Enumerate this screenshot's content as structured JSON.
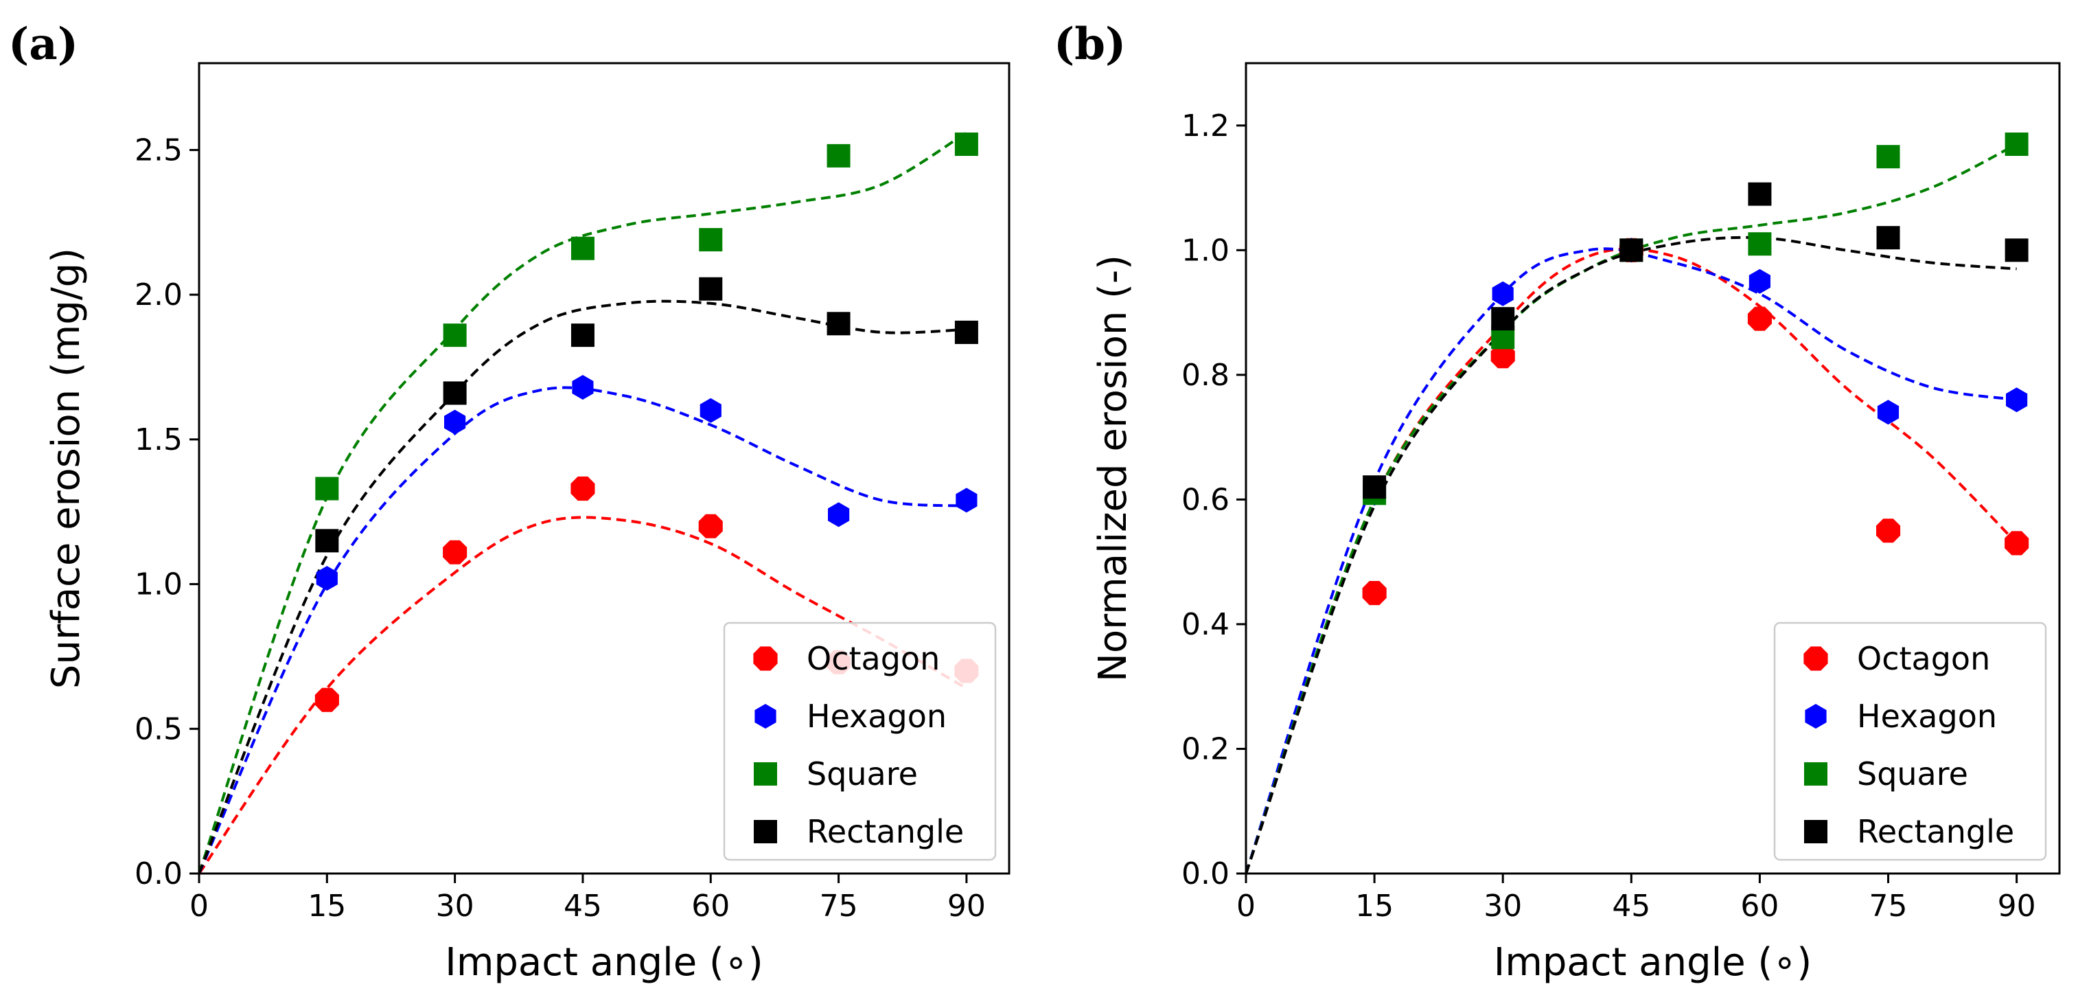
{
  "chart_data": [
    {
      "type": "scatter",
      "panel_label": "(a)",
      "xlabel": "Impact angle (∘)",
      "ylabel": "Surface erosion (mg/g)",
      "xlim": [
        0,
        95
      ],
      "ylim": [
        0,
        2.8
      ],
      "xticks": [
        0,
        15,
        30,
        45,
        60,
        75,
        90
      ],
      "yticks": [
        0.0,
        0.5,
        1.0,
        1.5,
        2.0,
        2.5
      ],
      "ytick_labels": [
        "0.0",
        "0.5",
        "1.0",
        "1.5",
        "2.0",
        "2.5"
      ],
      "grid": false,
      "legend_position": "lower-right",
      "x": [
        15,
        30,
        45,
        60,
        75,
        90
      ],
      "series": [
        {
          "name": "Octagon",
          "color": "#ff0000",
          "marker": "octagon",
          "values": [
            0.6,
            1.11,
            1.33,
            1.2,
            0.73,
            0.7
          ],
          "fit": [
            0,
            0.64,
            1.04,
            1.21,
            1.22,
            1.14,
            0.97,
            0.81,
            0.64
          ]
        },
        {
          "name": "Hexagon",
          "color": "#0000ff",
          "marker": "hexagon",
          "values": [
            1.02,
            1.56,
            1.68,
            1.6,
            1.24,
            1.29
          ],
          "fit": [
            0,
            1.0,
            1.52,
            1.67,
            1.65,
            1.55,
            1.41,
            1.29,
            1.27
          ]
        },
        {
          "name": "Square",
          "color": "#008000",
          "marker": "square",
          "values": [
            1.33,
            1.86,
            2.16,
            2.19,
            2.48,
            2.52
          ],
          "fit": [
            0,
            1.3,
            1.88,
            2.14,
            2.24,
            2.28,
            2.32,
            2.38,
            2.56
          ]
        },
        {
          "name": "Rectangle",
          "color": "#000000",
          "marker": "square",
          "values": [
            1.15,
            1.66,
            1.86,
            2.02,
            1.9,
            1.87
          ],
          "fit": [
            0,
            1.1,
            1.66,
            1.9,
            1.97,
            1.97,
            1.92,
            1.87,
            1.88
          ]
        }
      ],
      "fit_x": [
        0,
        15,
        30,
        40,
        50,
        60,
        70,
        80,
        90
      ]
    },
    {
      "type": "scatter",
      "panel_label": "(b)",
      "xlabel": "Impact angle (∘)",
      "ylabel": "Normalized erosion (-)",
      "xlim": [
        0,
        95
      ],
      "ylim": [
        0,
        1.3
      ],
      "xticks": [
        0,
        15,
        30,
        45,
        60,
        75,
        90
      ],
      "yticks": [
        0.0,
        0.2,
        0.4,
        0.6,
        0.8,
        1.0,
        1.2
      ],
      "ytick_labels": [
        "0.0",
        "0.2",
        "0.4",
        "0.6",
        "0.8",
        "1.0",
        "1.2"
      ],
      "grid": false,
      "legend_position": "lower-right",
      "x": [
        15,
        30,
        45,
        60,
        75,
        90
      ],
      "series": [
        {
          "name": "Octagon",
          "color": "#ff0000",
          "marker": "octagon",
          "values": [
            0.45,
            0.83,
            1.0,
            0.89,
            0.55,
            0.53
          ],
          "fit": [
            0,
            0.6,
            0.88,
            0.99,
            0.99,
            0.91,
            0.78,
            0.67,
            0.53
          ]
        },
        {
          "name": "Hexagon",
          "color": "#0000ff",
          "marker": "hexagon",
          "values": [
            0.61,
            0.93,
            1.0,
            0.95,
            0.74,
            0.76
          ],
          "fit": [
            0,
            0.63,
            0.93,
            1.0,
            0.98,
            0.93,
            0.84,
            0.78,
            0.76
          ]
        },
        {
          "name": "Square",
          "color": "#008000",
          "marker": "square",
          "values": [
            0.61,
            0.86,
            1.0,
            1.01,
            1.15,
            1.17
          ],
          "fit": [
            0,
            0.6,
            0.87,
            0.97,
            1.02,
            1.04,
            1.06,
            1.1,
            1.17
          ]
        },
        {
          "name": "Rectangle",
          "color": "#000000",
          "marker": "square",
          "values": [
            0.62,
            0.89,
            1.0,
            1.09,
            1.02,
            1.0
          ],
          "fit": [
            0,
            0.59,
            0.87,
            0.97,
            1.01,
            1.02,
            1.0,
            0.98,
            0.97
          ]
        }
      ],
      "fit_x": [
        0,
        15,
        30,
        40,
        50,
        60,
        70,
        80,
        90
      ]
    }
  ]
}
